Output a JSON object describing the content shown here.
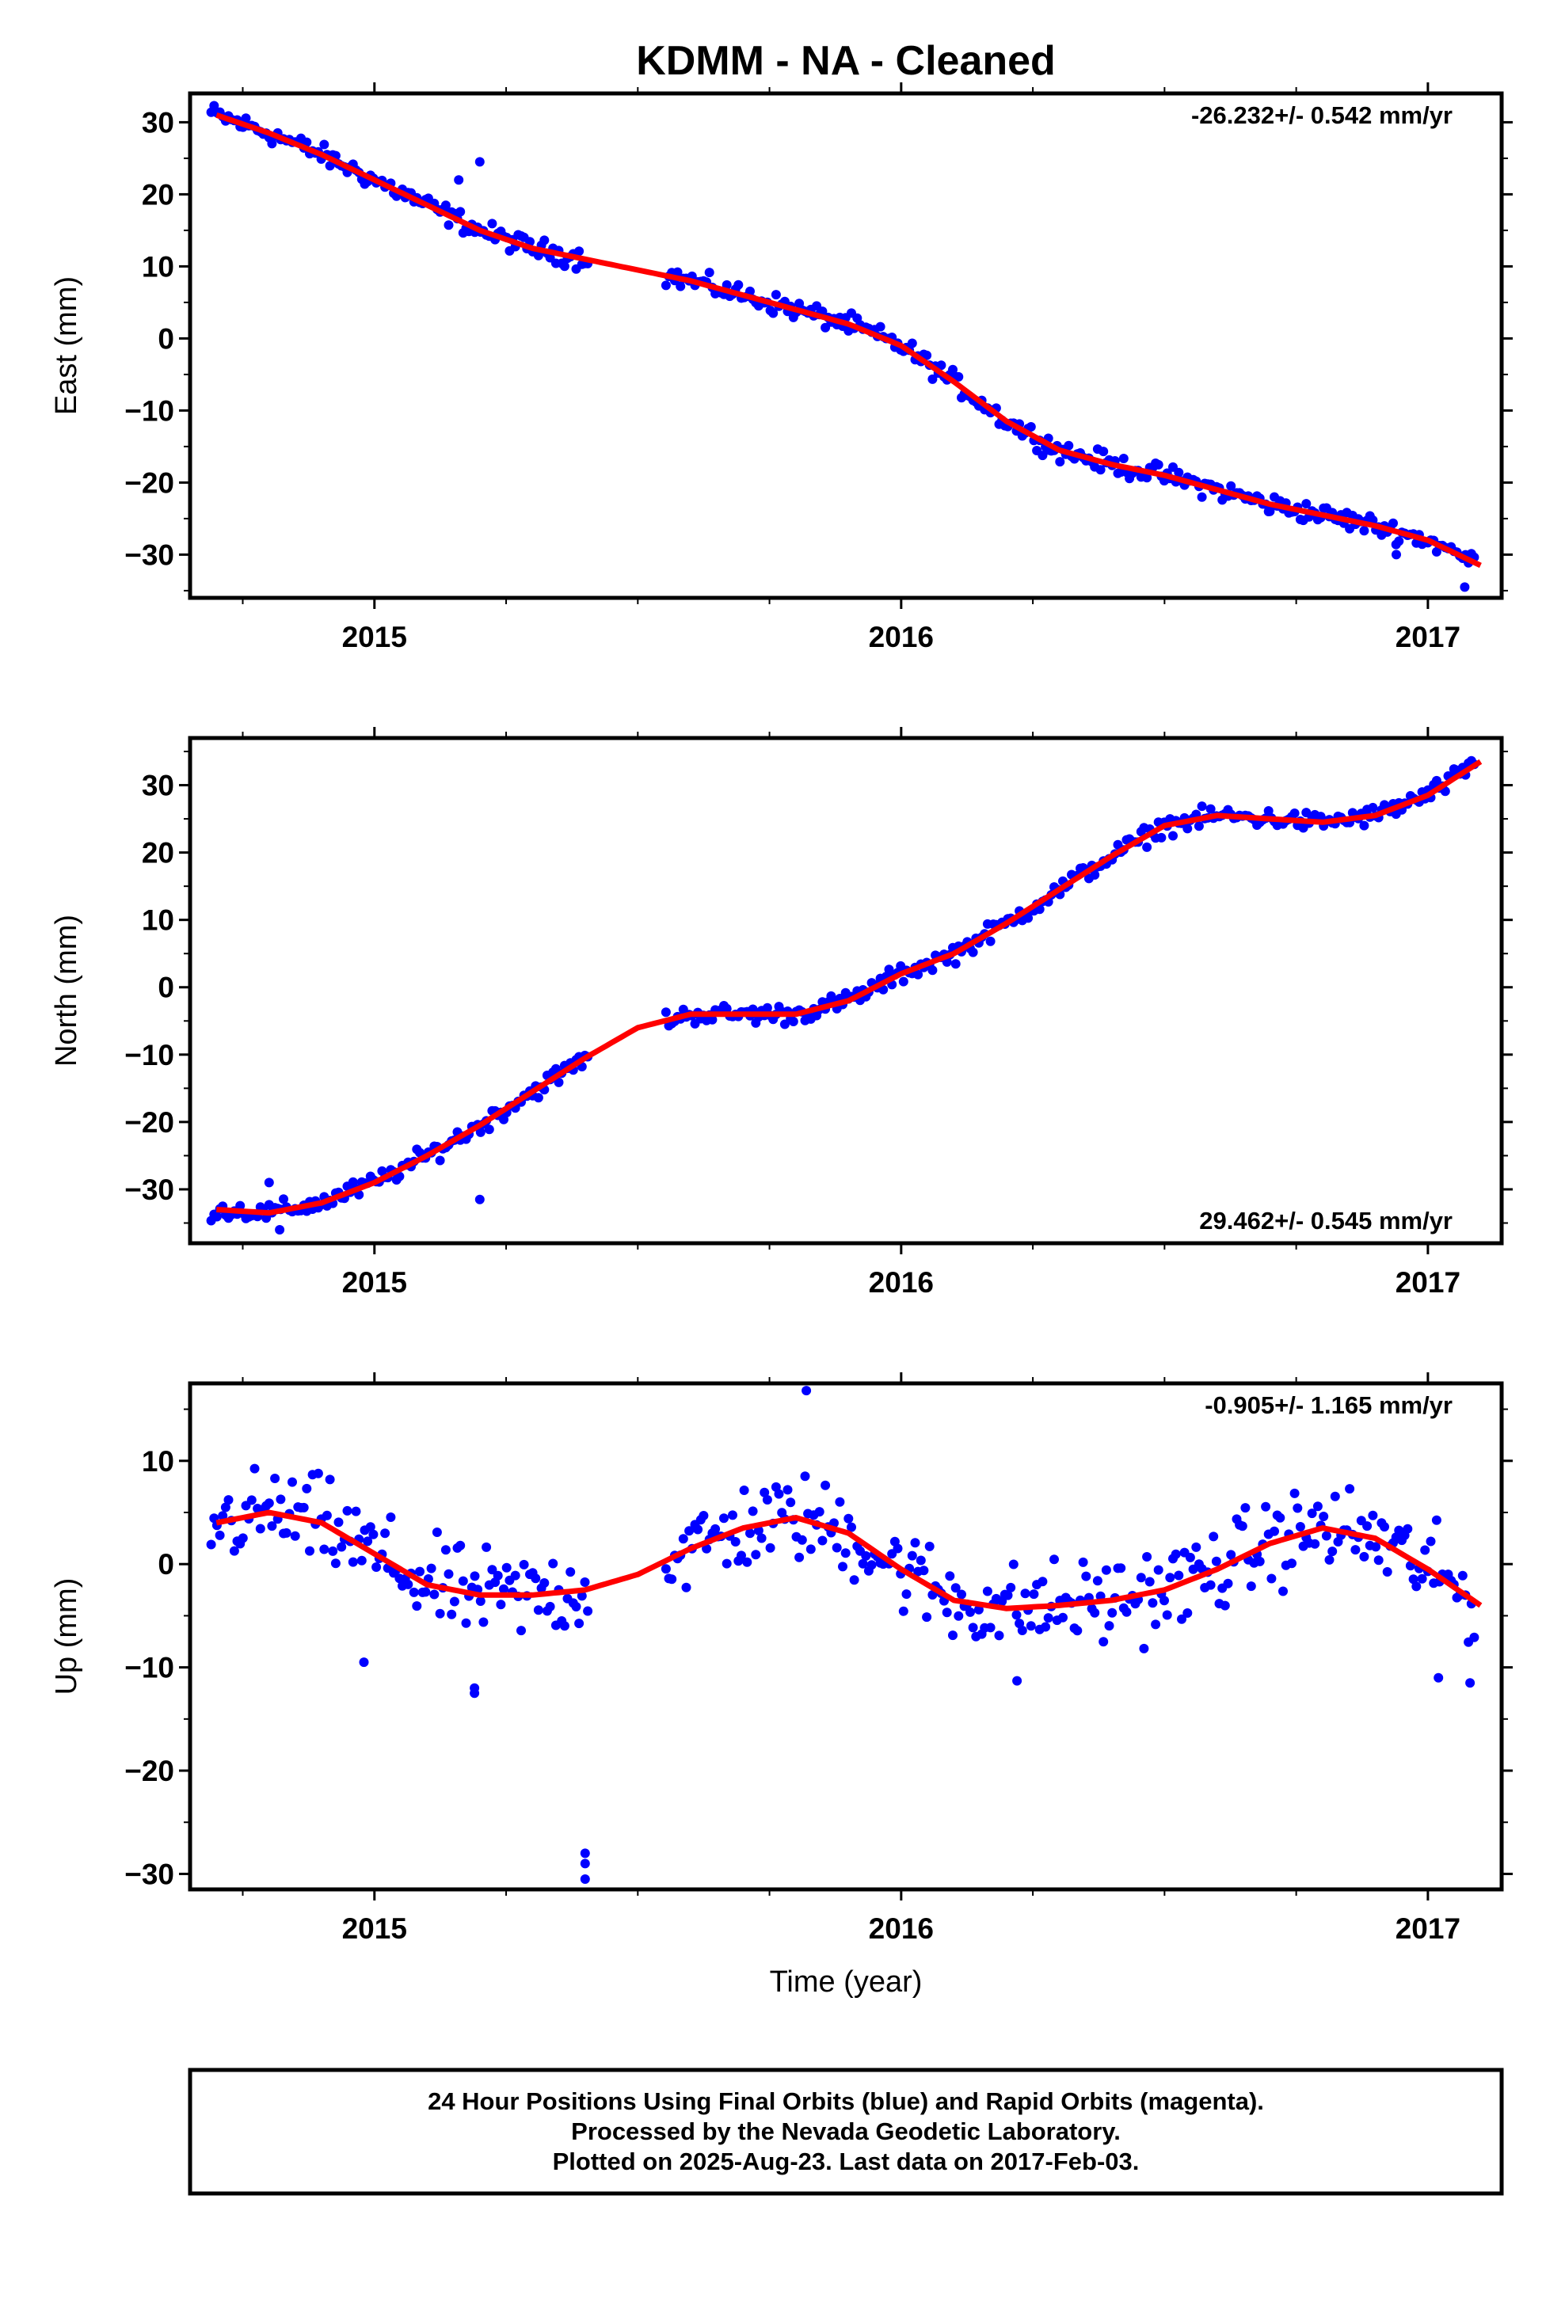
{
  "title": "KDMM  - NA - Cleaned",
  "xlabel": "Time (year)",
  "colors": {
    "points": "#0000ff",
    "fit": "#ff0000",
    "frame": "#000000"
  },
  "footer": [
    "24 Hour Positions Using Final Orbits (blue) and Rapid Orbits (magenta).",
    "Processed by the Nevada Geodetic Laboratory.",
    "Plotted on 2025-Aug-23. Last data on 2017-Feb-03."
  ],
  "chart_data": [
    {
      "type": "scatter",
      "ylabel": "East (mm)",
      "rate": "-26.232+/- 0.542 mm/yr",
      "rate_position": "top-right",
      "xlim": [
        2014.65,
        2017.14
      ],
      "ylim": [
        -36,
        34
      ],
      "yticks": [
        -30,
        -20,
        -10,
        0,
        10,
        20,
        30
      ],
      "xticks": [
        2015,
        2016,
        2017
      ],
      "gaps": [
        [
          2015.41,
          2015.55
        ]
      ],
      "outliers": [
        [
          2015.2,
          24.5
        ],
        [
          2015.16,
          22
        ],
        [
          2016.28,
          -15.5
        ],
        [
          2016.7,
          -24
        ],
        [
          2016.94,
          -30
        ],
        [
          2017.07,
          -34.5
        ]
      ],
      "fit": {
        "x": [
          2014.7,
          2014.8,
          2014.9,
          2015.0,
          2015.1,
          2015.2,
          2015.3,
          2015.4,
          2015.5,
          2015.6,
          2015.7,
          2015.8,
          2015.9,
          2016.0,
          2016.1,
          2016.2,
          2016.3,
          2016.4,
          2016.5,
          2016.6,
          2016.7,
          2016.8,
          2016.9,
          2017.0,
          2017.1
        ],
        "y": [
          31,
          28.5,
          25.5,
          22,
          18.5,
          15,
          12.5,
          11,
          9.5,
          8,
          6,
          4,
          2,
          -1,
          -6,
          -11.5,
          -15.5,
          -17.5,
          -19,
          -21,
          -23,
          -24.5,
          -26,
          -28,
          -31.5
        ]
      }
    },
    {
      "type": "scatter",
      "ylabel": "North (mm)",
      "rate": "29.462+/- 0.545 mm/yr",
      "rate_position": "bottom-right",
      "xlim": [
        2014.65,
        2017.14
      ],
      "ylim": [
        -38,
        37
      ],
      "yticks": [
        -30,
        -20,
        -10,
        0,
        10,
        20,
        30
      ],
      "xticks": [
        2015,
        2016,
        2017
      ],
      "gaps": [
        [
          2015.41,
          2015.55
        ]
      ],
      "outliers": [
        [
          2014.82,
          -36
        ],
        [
          2014.8,
          -29
        ],
        [
          2015.2,
          -31.5
        ]
      ],
      "fit": {
        "x": [
          2014.7,
          2014.8,
          2014.9,
          2015.0,
          2015.1,
          2015.2,
          2015.3,
          2015.4,
          2015.5,
          2015.6,
          2015.7,
          2015.8,
          2015.9,
          2016.0,
          2016.1,
          2016.2,
          2016.3,
          2016.4,
          2016.5,
          2016.6,
          2016.7,
          2016.8,
          2016.9,
          2017.0,
          2017.1
        ],
        "y": [
          -33,
          -33.5,
          -32,
          -29,
          -25,
          -20.5,
          -15.5,
          -10.5,
          -6,
          -4,
          -4,
          -4,
          -2,
          2,
          5,
          9.5,
          14.5,
          19.5,
          24,
          25.5,
          25,
          24.5,
          25.5,
          28.5,
          33.5
        ]
      }
    },
    {
      "type": "scatter",
      "ylabel": "Up (mm)",
      "rate": "-0.905+/- 1.165 mm/yr",
      "rate_position": "top-right",
      "xlim": [
        2014.65,
        2017.14
      ],
      "ylim": [
        -31.5,
        17.5
      ],
      "yticks": [
        -30,
        -20,
        -10,
        0,
        10
      ],
      "xticks": [
        2015,
        2016,
        2017
      ],
      "gaps": [
        [
          2015.41,
          2015.55
        ]
      ],
      "outliers": [
        [
          2015.4,
          -28
        ],
        [
          2015.4,
          -29
        ],
        [
          2015.4,
          -30.5
        ],
        [
          2015.82,
          16.8
        ],
        [
          2014.98,
          -9.5
        ],
        [
          2015.19,
          -12
        ],
        [
          2015.19,
          -12.5
        ],
        [
          2016.22,
          -11.3
        ],
        [
          2017.02,
          -11
        ],
        [
          2017.08,
          -11.5
        ]
      ],
      "fit": {
        "x": [
          2014.7,
          2014.8,
          2014.9,
          2015.0,
          2015.1,
          2015.2,
          2015.3,
          2015.4,
          2015.5,
          2015.6,
          2015.7,
          2015.8,
          2015.9,
          2016.0,
          2016.1,
          2016.2,
          2016.3,
          2016.4,
          2016.5,
          2016.6,
          2016.7,
          2016.8,
          2016.9,
          2017.0,
          2017.1
        ],
        "y": [
          4,
          5,
          4,
          1,
          -2,
          -3,
          -3,
          -2.5,
          -1,
          1.5,
          3.5,
          4.5,
          3,
          -0.5,
          -3.5,
          -4.3,
          -4,
          -3.5,
          -2.5,
          -0.5,
          2,
          3.5,
          2.5,
          -0.5,
          -4
        ]
      }
    }
  ]
}
